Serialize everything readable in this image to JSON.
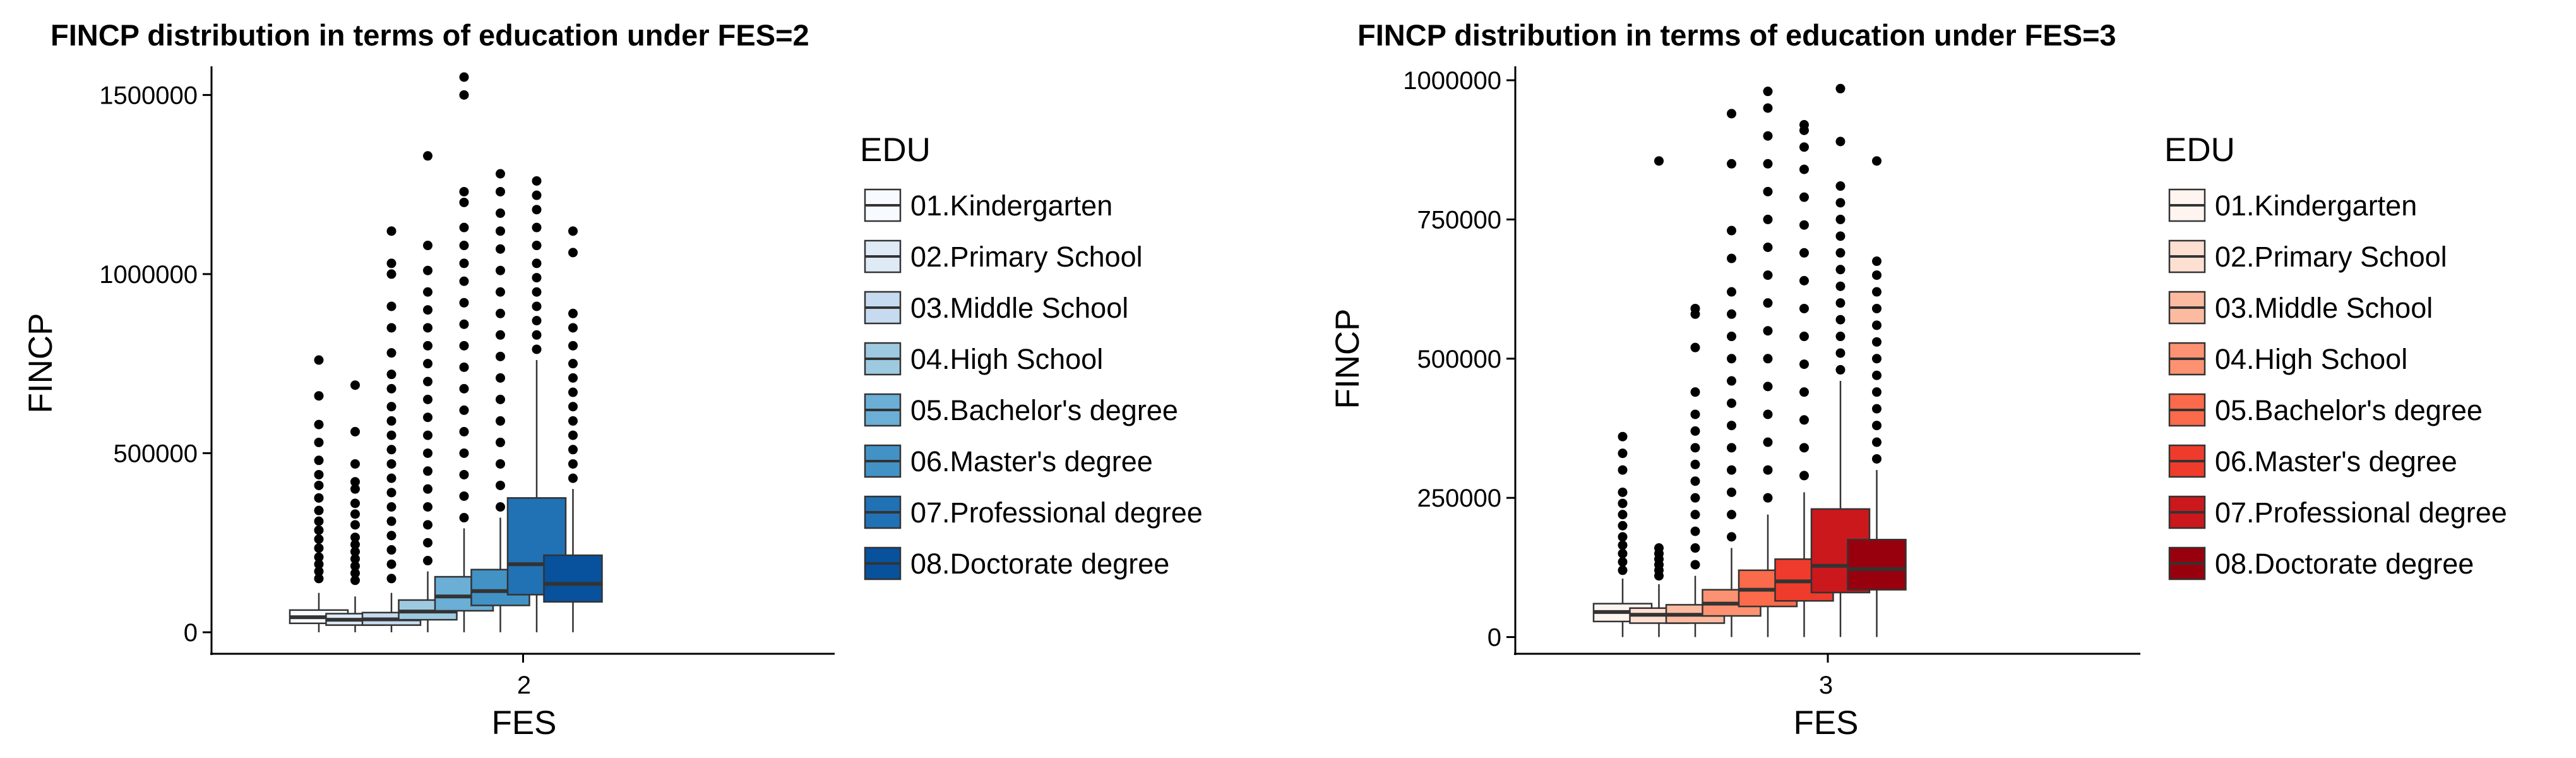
{
  "chart_data": [
    {
      "type": "boxplot",
      "title": "FINCP distribution in terms of education under FES=2",
      "xlabel": "FES",
      "ylabel": "FINCP",
      "x_category": "2",
      "ylim": [
        -60000,
        1580000
      ],
      "yticks": [
        0,
        500000,
        1000000,
        1500000
      ],
      "ytick_labels": [
        "0",
        "500000",
        "1000000",
        "1500000"
      ],
      "legend_title": "EDU",
      "legend_position": "right",
      "grid": false,
      "series": [
        {
          "name": "01.Kindergarten",
          "color": "#F7FBFF",
          "min": 0,
          "q1": 25000,
          "median": 42000,
          "q3": 62000,
          "max": 110000,
          "outliers": [
            150000,
            170000,
            190000,
            210000,
            235000,
            260000,
            285000,
            310000,
            340000,
            375000,
            410000,
            440000,
            480000,
            530000,
            580000,
            660000,
            760000
          ]
        },
        {
          "name": "02.Primary School",
          "color": "#DEEBF7",
          "min": 0,
          "q1": 20000,
          "median": 35000,
          "q3": 52000,
          "max": 100000,
          "outliers": [
            145000,
            165000,
            185000,
            205000,
            225000,
            245000,
            265000,
            300000,
            330000,
            360000,
            400000,
            420000,
            470000,
            560000,
            690000
          ]
        },
        {
          "name": "03.Middle School",
          "color": "#C6DBEF",
          "min": 0,
          "q1": 20000,
          "median": 36000,
          "q3": 55000,
          "max": 110000,
          "outliers": [
            150000,
            190000,
            230000,
            270000,
            310000,
            350000,
            390000,
            430000,
            470000,
            510000,
            550000,
            590000,
            630000,
            680000,
            720000,
            780000,
            850000,
            910000,
            1000000,
            1030000,
            1120000
          ]
        },
        {
          "name": "04.High School",
          "color": "#9ECAE1",
          "min": 0,
          "q1": 35000,
          "median": 58000,
          "q3": 90000,
          "max": 170000,
          "outliers": [
            200000,
            250000,
            300000,
            350000,
            400000,
            450000,
            500000,
            550000,
            600000,
            650000,
            700000,
            750000,
            800000,
            850000,
            900000,
            950000,
            1010000,
            1080000,
            1330000
          ]
        },
        {
          "name": "05.Bachelor's degree",
          "color": "#6BAED6",
          "min": 0,
          "q1": 60000,
          "median": 100000,
          "q3": 155000,
          "max": 290000,
          "outliers": [
            320000,
            380000,
            440000,
            500000,
            560000,
            620000,
            680000,
            740000,
            800000,
            860000,
            920000,
            980000,
            1030000,
            1080000,
            1130000,
            1200000,
            1230000,
            1500000,
            1550000
          ]
        },
        {
          "name": "06.Master's degree",
          "color": "#4292C6",
          "min": 0,
          "q1": 75000,
          "median": 115000,
          "q3": 175000,
          "max": 320000,
          "outliers": [
            350000,
            410000,
            470000,
            530000,
            590000,
            650000,
            710000,
            770000,
            830000,
            890000,
            950000,
            1010000,
            1070000,
            1120000,
            1170000,
            1230000,
            1280000
          ]
        },
        {
          "name": "07.Professional degree",
          "color": "#2171B5",
          "min": 0,
          "q1": 105000,
          "median": 190000,
          "q3": 375000,
          "max": 760000,
          "outliers": [
            790000,
            830000,
            870000,
            910000,
            950000,
            990000,
            1030000,
            1080000,
            1130000,
            1180000,
            1220000,
            1260000
          ]
        },
        {
          "name": "08.Doctorate degree",
          "color": "#08519C",
          "min": 0,
          "q1": 85000,
          "median": 135000,
          "q3": 215000,
          "max": 400000,
          "outliers": [
            430000,
            470000,
            510000,
            550000,
            590000,
            630000,
            670000,
            710000,
            750000,
            800000,
            850000,
            890000,
            1060000,
            1120000
          ]
        }
      ]
    },
    {
      "type": "boxplot",
      "title": "FINCP distribution in terms of education under FES=3",
      "xlabel": "FES",
      "ylabel": "FINCP",
      "x_category": "3",
      "ylim": [
        -30000,
        1025000
      ],
      "yticks": [
        0,
        250000,
        500000,
        750000,
        1000000
      ],
      "ytick_labels": [
        "0",
        "250000",
        "500000",
        "750000",
        "1000000"
      ],
      "legend_title": "EDU",
      "legend_position": "right",
      "grid": false,
      "series": [
        {
          "name": "01.Kindergarten",
          "color": "#FFF5F0",
          "min": 0,
          "q1": 28000,
          "median": 45000,
          "q3": 60000,
          "max": 105000,
          "outliers": [
            120000,
            135000,
            150000,
            165000,
            180000,
            200000,
            220000,
            240000,
            260000,
            300000,
            330000,
            360000
          ]
        },
        {
          "name": "02.Primary School",
          "color": "#FEE0D2",
          "min": 0,
          "q1": 25000,
          "median": 40000,
          "q3": 52000,
          "max": 95000,
          "outliers": [
            110000,
            120000,
            130000,
            140000,
            150000,
            160000,
            855000
          ]
        },
        {
          "name": "03.Middle School",
          "color": "#FCBBA1",
          "min": 0,
          "q1": 25000,
          "median": 40000,
          "q3": 58000,
          "max": 110000,
          "outliers": [
            130000,
            160000,
            190000,
            220000,
            250000,
            280000,
            310000,
            340000,
            370000,
            400000,
            440000,
            520000,
            580000,
            590000
          ]
        },
        {
          "name": "04.High School",
          "color": "#FC9272",
          "min": 0,
          "q1": 38000,
          "median": 60000,
          "q3": 85000,
          "max": 160000,
          "outliers": [
            180000,
            220000,
            260000,
            300000,
            340000,
            380000,
            420000,
            460000,
            500000,
            540000,
            580000,
            620000,
            680000,
            730000,
            850000,
            940000
          ]
        },
        {
          "name": "05.Bachelor's degree",
          "color": "#FB6A4A",
          "min": 0,
          "q1": 55000,
          "median": 85000,
          "q3": 120000,
          "max": 220000,
          "outliers": [
            250000,
            300000,
            350000,
            400000,
            450000,
            500000,
            550000,
            600000,
            650000,
            700000,
            750000,
            800000,
            850000,
            900000,
            950000,
            980000
          ]
        },
        {
          "name": "06.Master's degree",
          "color": "#EF3B2C",
          "min": 0,
          "q1": 65000,
          "median": 100000,
          "q3": 140000,
          "max": 260000,
          "outliers": [
            290000,
            340000,
            390000,
            440000,
            490000,
            540000,
            590000,
            640000,
            690000,
            740000,
            790000,
            840000,
            880000,
            910000,
            920000
          ]
        },
        {
          "name": "07.Professional degree",
          "color": "#CB181D",
          "min": 0,
          "q1": 80000,
          "median": 128000,
          "q3": 230000,
          "max": 460000,
          "outliers": [
            480000,
            510000,
            540000,
            570000,
            600000,
            630000,
            660000,
            690000,
            720000,
            750000,
            780000,
            810000,
            890000,
            985000
          ]
        },
        {
          "name": "08.Doctorate degree",
          "color": "#99000D",
          "min": 0,
          "q1": 85000,
          "median": 122000,
          "q3": 175000,
          "max": 300000,
          "outliers": [
            320000,
            350000,
            380000,
            410000,
            440000,
            470000,
            500000,
            530000,
            560000,
            590000,
            620000,
            650000,
            675000,
            855000
          ]
        }
      ]
    }
  ]
}
